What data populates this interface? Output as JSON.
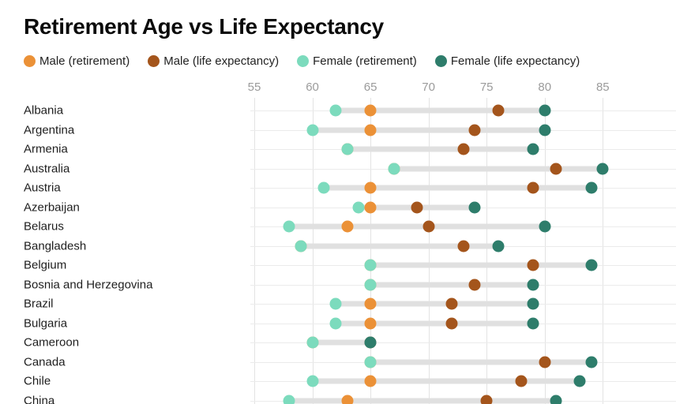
{
  "title": "Retirement Age vs Life Expectancy",
  "colors": {
    "male_retirement": "#EB9137",
    "male_life_expectancy": "#A4551C",
    "female_retirement": "#7CDBBD",
    "female_life_expectancy": "#2E7D6B",
    "connector_bar": "#E0E0E0",
    "grid": "#E3E3E3",
    "tick_text": "#9B9B9B",
    "label_text": "#1E1E1E"
  },
  "chart_data": {
    "type": "scatter",
    "subtype": "dumbbell-dot-plot",
    "title": "Retirement Age vs Life Expectancy",
    "xlabel": "",
    "ylabel": "",
    "x_ticks": [
      55,
      60,
      65,
      70,
      75,
      80,
      85
    ],
    "xlim": [
      55,
      85
    ],
    "grid": "on",
    "legend_position": "top",
    "series": [
      {
        "key": "male_retirement",
        "label": "Male (retirement)",
        "color": "#EB9137"
      },
      {
        "key": "male_life_expectancy",
        "label": "Male (life expectancy)",
        "color": "#A4551C"
      },
      {
        "key": "female_retirement",
        "label": "Female (retirement)",
        "color": "#7CDBBD"
      },
      {
        "key": "female_life_expectancy",
        "label": "Female (life expectancy)",
        "color": "#2E7D6B"
      }
    ],
    "rows": [
      {
        "country": "Albania",
        "male_retirement": 65,
        "male_life_expectancy": 76,
        "female_retirement": 62,
        "female_life_expectancy": 80
      },
      {
        "country": "Argentina",
        "male_retirement": 65,
        "male_life_expectancy": 74,
        "female_retirement": 60,
        "female_life_expectancy": 80
      },
      {
        "country": "Armenia",
        "male_retirement": 63,
        "male_life_expectancy": 73,
        "female_retirement": 63,
        "female_life_expectancy": 79
      },
      {
        "country": "Australia",
        "male_retirement": 67,
        "male_life_expectancy": 81,
        "female_retirement": 67,
        "female_life_expectancy": 85
      },
      {
        "country": "Austria",
        "male_retirement": 65,
        "male_life_expectancy": 79,
        "female_retirement": 61,
        "female_life_expectancy": 84
      },
      {
        "country": "Azerbaijan",
        "male_retirement": 65,
        "male_life_expectancy": 69,
        "female_retirement": 64,
        "female_life_expectancy": 74
      },
      {
        "country": "Belarus",
        "male_retirement": 63,
        "male_life_expectancy": 70,
        "female_retirement": 58,
        "female_life_expectancy": 80
      },
      {
        "country": "Bangladesh",
        "male_retirement": 59,
        "male_life_expectancy": 73,
        "female_retirement": 59,
        "female_life_expectancy": 76
      },
      {
        "country": "Belgium",
        "male_retirement": 65,
        "male_life_expectancy": 79,
        "female_retirement": 65,
        "female_life_expectancy": 84
      },
      {
        "country": "Bosnia and Herzegovina",
        "male_retirement": 65,
        "male_life_expectancy": 74,
        "female_retirement": 65,
        "female_life_expectancy": 79
      },
      {
        "country": "Brazil",
        "male_retirement": 65,
        "male_life_expectancy": 72,
        "female_retirement": 62,
        "female_life_expectancy": 79
      },
      {
        "country": "Bulgaria",
        "male_retirement": 65,
        "male_life_expectancy": 72,
        "female_retirement": 62,
        "female_life_expectancy": 79
      },
      {
        "country": "Cameroon",
        "male_retirement": 60,
        "male_life_expectancy": 65,
        "female_retirement": 60,
        "female_life_expectancy": 65
      },
      {
        "country": "Canada",
        "male_retirement": 65,
        "male_life_expectancy": 80,
        "female_retirement": 65,
        "female_life_expectancy": 84
      },
      {
        "country": "Chile",
        "male_retirement": 65,
        "male_life_expectancy": 78,
        "female_retirement": 60,
        "female_life_expectancy": 83
      },
      {
        "country": "China",
        "male_retirement": 63,
        "male_life_expectancy": 75,
        "female_retirement": 58,
        "female_life_expectancy": 81
      }
    ]
  }
}
